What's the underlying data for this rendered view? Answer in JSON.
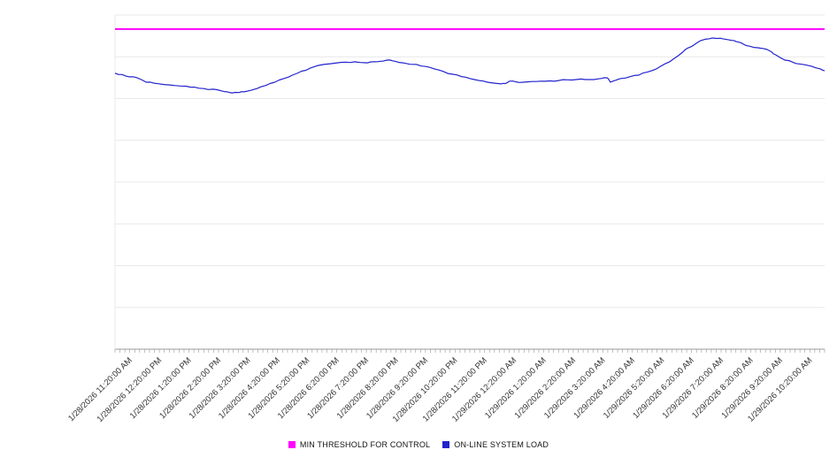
{
  "chart_data": {
    "type": "line",
    "title": "",
    "xlabel": "",
    "ylabel": "",
    "ylim": [
      0,
      100
    ],
    "grid": true,
    "grid_divisions": 8,
    "legend_position": "bottom",
    "minor_ticks_per_interval": 6,
    "colors": {
      "grid": "#e8e8e8",
      "axis": "#999999",
      "tick": "#999999",
      "tick_label": "#333333",
      "background": "#ffffff"
    },
    "x_tick_labels": [
      "1/28/2026 11:20:00 AM",
      "1/28/2026 12:20:00 PM",
      "1/28/2026 1:20:00 PM",
      "1/28/2026 2:20:00 PM",
      "1/28/2026 3:20:00 PM",
      "1/28/2026 4:20:00 PM",
      "1/28/2026 5:20:00 PM",
      "1/28/2026 6:20:00 PM",
      "1/28/2026 7:20:00 PM",
      "1/28/2026 8:20:00 PM",
      "1/28/2026 9:20:00 PM",
      "1/28/2026 10:20:00 PM",
      "1/28/2026 11:20:00 PM",
      "1/29/2026 12:20:00 AM",
      "1/29/2026 1:20:00 AM",
      "1/29/2026 2:20:00 AM",
      "1/29/2026 3:20:00 AM",
      "1/29/2026 4:20:00 AM",
      "1/29/2026 5:20:00 AM",
      "1/29/2026 6:20:00 AM",
      "1/29/2026 7:20:00 AM",
      "1/29/2026 8:20:00 AM",
      "1/29/2026 9:20:00 AM",
      "1/29/2026 10:20:00 AM"
    ],
    "series": [
      {
        "name": "MIN THRESHOLD FOR CONTROL",
        "type": "threshold",
        "color": "#ff00ff",
        "value": 95.8
      },
      {
        "name": "ON-LINE SYSTEM LOAD",
        "type": "line",
        "color": "#2222cc",
        "points": [
          [
            0.0,
            82.6
          ],
          [
            0.01,
            82.2
          ],
          [
            0.02,
            81.5
          ],
          [
            0.03,
            81.3
          ],
          [
            0.044,
            79.9
          ],
          [
            0.055,
            79.6
          ],
          [
            0.069,
            79.2
          ],
          [
            0.085,
            78.9
          ],
          [
            0.1,
            78.7
          ],
          [
            0.112,
            78.4
          ],
          [
            0.125,
            78.0
          ],
          [
            0.138,
            77.8
          ],
          [
            0.15,
            77.3
          ],
          [
            0.158,
            77.0
          ],
          [
            0.165,
            76.7
          ],
          [
            0.175,
            76.8
          ],
          [
            0.181,
            77.0
          ],
          [
            0.192,
            77.5
          ],
          [
            0.2,
            78.0
          ],
          [
            0.212,
            78.9
          ],
          [
            0.225,
            79.9
          ],
          [
            0.238,
            81.0
          ],
          [
            0.25,
            82.0
          ],
          [
            0.263,
            83.2
          ],
          [
            0.275,
            84.1
          ],
          [
            0.294,
            85.2
          ],
          [
            0.313,
            85.7
          ],
          [
            0.325,
            85.9
          ],
          [
            0.338,
            86.0
          ],
          [
            0.346,
            85.8
          ],
          [
            0.356,
            85.7
          ],
          [
            0.365,
            86.0
          ],
          [
            0.375,
            86.2
          ],
          [
            0.381,
            86.4
          ],
          [
            0.388,
            86.5
          ],
          [
            0.394,
            86.2
          ],
          [
            0.406,
            85.7
          ],
          [
            0.425,
            85.2
          ],
          [
            0.438,
            84.6
          ],
          [
            0.45,
            83.9
          ],
          [
            0.463,
            83.1
          ],
          [
            0.475,
            82.3
          ],
          [
            0.488,
            81.6
          ],
          [
            0.5,
            81.0
          ],
          [
            0.513,
            80.4
          ],
          [
            0.525,
            79.9
          ],
          [
            0.535,
            79.6
          ],
          [
            0.544,
            79.4
          ],
          [
            0.55,
            79.5
          ],
          [
            0.556,
            80.2
          ],
          [
            0.565,
            80.0
          ],
          [
            0.575,
            79.9
          ],
          [
            0.588,
            80.1
          ],
          [
            0.6,
            80.2
          ],
          [
            0.613,
            80.3
          ],
          [
            0.625,
            80.4
          ],
          [
            0.638,
            80.6
          ],
          [
            0.65,
            80.7
          ],
          [
            0.663,
            80.7
          ],
          [
            0.675,
            80.7
          ],
          [
            0.685,
            81.0
          ],
          [
            0.694,
            81.2
          ],
          [
            0.698,
            79.9
          ],
          [
            0.706,
            80.5
          ],
          [
            0.713,
            81.0
          ],
          [
            0.725,
            81.5
          ],
          [
            0.738,
            82.0
          ],
          [
            0.75,
            82.9
          ],
          [
            0.763,
            83.9
          ],
          [
            0.775,
            85.4
          ],
          [
            0.788,
            87.0
          ],
          [
            0.8,
            88.9
          ],
          [
            0.806,
            90.0
          ],
          [
            0.819,
            91.5
          ],
          [
            0.825,
            92.3
          ],
          [
            0.838,
            92.9
          ],
          [
            0.844,
            93.1
          ],
          [
            0.85,
            93.0
          ],
          [
            0.856,
            92.9
          ],
          [
            0.869,
            92.4
          ],
          [
            0.875,
            92.1
          ],
          [
            0.888,
            91.0
          ],
          [
            0.894,
            90.7
          ],
          [
            0.906,
            90.2
          ],
          [
            0.913,
            90.0
          ],
          [
            0.925,
            89.0
          ],
          [
            0.931,
            88.1
          ],
          [
            0.944,
            86.5
          ],
          [
            0.956,
            85.8
          ],
          [
            0.963,
            85.4
          ],
          [
            0.975,
            85.0
          ],
          [
            0.981,
            84.7
          ],
          [
            0.994,
            83.9
          ],
          [
            1.0,
            83.3
          ]
        ]
      }
    ]
  }
}
